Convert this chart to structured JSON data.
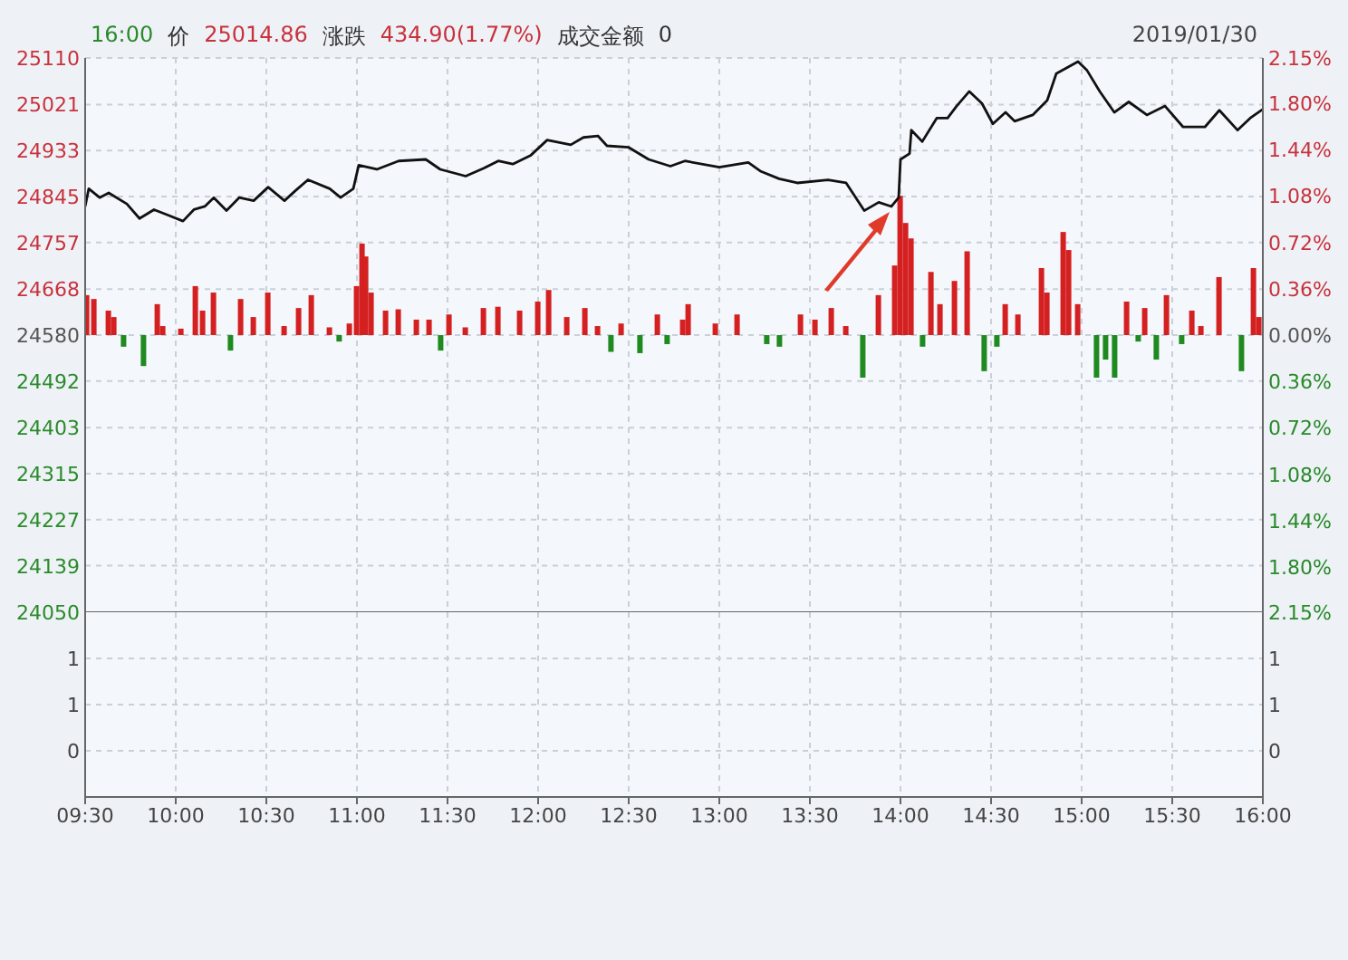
{
  "chart_data": [
    {
      "type": "line",
      "annotations": [
        "16:00",
        "价",
        "25014.86",
        "涨跌",
        "434.90(1.77%)",
        "成交金额",
        "0",
        "2019/01/30"
      ],
      "xlim": [
        9.5,
        16
      ],
      "xticks": [
        9.5,
        10,
        10.5,
        11,
        11.5,
        12,
        12.5,
        13,
        13.5,
        14,
        14.5,
        15,
        15.5,
        16
      ],
      "ylim": [
        24050,
        25110
      ],
      "yticks": [
        24050,
        24139,
        24227,
        24315,
        24403,
        24492,
        24580,
        24668,
        24757,
        24845,
        24933,
        25021,
        25110
      ],
      "y2lim": [
        -2.15,
        2.15
      ],
      "y2ticks": [
        {
          "value": -2.15,
          "label": "2.15%"
        },
        {
          "value": -1.8,
          "label": "1.80%"
        },
        {
          "value": -1.44,
          "label": "1.44%"
        },
        {
          "value": -1.08,
          "label": "1.08%"
        },
        {
          "value": -0.72,
          "label": "0.72%"
        },
        {
          "value": -0.36,
          "label": "0.36%"
        },
        {
          "value": 0,
          "label": "0.00%"
        },
        {
          "value": 0.36,
          "label": "0.36%"
        },
        {
          "value": 0.72,
          "label": "0.72%"
        },
        {
          "value": 1.08,
          "label": "1.08%"
        },
        {
          "value": 1.44,
          "label": "1.44%"
        },
        {
          "value": 1.8,
          "label": "1.80%"
        },
        {
          "value": 2.15,
          "label": "2.15%"
        }
      ],
      "tick_labels": "y",
      "grid": true,
      "marker": "none",
      "line_style": "solid",
      "series": [
        {
          "color": "#111111",
          "x": [
            9.5,
            9.52,
            9.58,
            9.63,
            9.73,
            9.8,
            9.88,
            9.96,
            10.04,
            10.1,
            10.16,
            10.21,
            10.28,
            10.35,
            10.43,
            10.51,
            10.6,
            10.66,
            10.73,
            10.85,
            10.91,
            10.98,
            11.01,
            11.11,
            11.23,
            11.38,
            11.46,
            11.6,
            11.7,
            11.78,
            11.86,
            11.96,
            12.05,
            12.18,
            12.25,
            12.33,
            12.38,
            12.5,
            12.61,
            12.73,
            12.81,
            13.0,
            13.16,
            13.23,
            13.33,
            13.43,
            13.6,
            13.7,
            13.8,
            13.88,
            13.95,
            13.99,
            14.0,
            14.05,
            14.06,
            14.12,
            14.2,
            14.26,
            14.31,
            14.38,
            14.45,
            14.51,
            14.58,
            14.63,
            14.73,
            14.81,
            14.86,
            14.98,
            15.03,
            15.1,
            15.18,
            15.26,
            15.36,
            15.46,
            15.56,
            15.68,
            15.76,
            15.86,
            15.93,
            16.0
          ],
          "values": [
            24826,
            24860,
            24843,
            24852,
            24831,
            24803,
            24820,
            24809,
            24798,
            24820,
            24826,
            24843,
            24818,
            24843,
            24837,
            24863,
            24837,
            24856,
            24877,
            24860,
            24843,
            24860,
            24905,
            24897,
            24913,
            24916,
            24897,
            24884,
            24899,
            24913,
            24907,
            24924,
            24953,
            24944,
            24958,
            24961,
            24942,
            24939,
            24916,
            24903,
            24913,
            24901,
            24910,
            24893,
            24879,
            24871,
            24877,
            24871,
            24818,
            24834,
            24826,
            24843,
            24916,
            24927,
            24972,
            24950,
            24995,
            24995,
            25018,
            25046,
            25023,
            24984,
            25006,
            24989,
            25001,
            25029,
            25080,
            25103,
            25086,
            25046,
            25006,
            25026,
            25001,
            25018,
            24978,
            24978,
            25010,
            24972,
            24995,
            25012
          ]
        },
        {
          "type": "bar",
          "axis": "y2",
          "color": "#d42020",
          "x": [
            9.51,
            9.55,
            9.63,
            9.66,
            9.9,
            9.93,
            10.03,
            10.11,
            10.15,
            10.21,
            10.36,
            10.43,
            10.51,
            10.6,
            10.68,
            10.75,
            10.85,
            10.96,
            11.0,
            11.03,
            11.05,
            11.08,
            11.16,
            11.23,
            11.33,
            11.4,
            11.51,
            11.6,
            11.7,
            11.78,
            11.9,
            12.0,
            12.06,
            12.16,
            12.26,
            12.33,
            12.46,
            12.66,
            12.8,
            12.83,
            12.98,
            13.1,
            13.45,
            13.53,
            13.62,
            13.7,
            13.88,
            13.97,
            14.0,
            14.03,
            14.06,
            14.17,
            14.22,
            14.3,
            14.37,
            14.58,
            14.65,
            14.78,
            14.81,
            14.9,
            14.93,
            14.98,
            15.25,
            15.35,
            15.47,
            15.61,
            15.66,
            15.76,
            15.95,
            15.98
          ],
          "values": [
            0.31,
            0.28,
            0.19,
            0.14,
            0.24,
            0.07,
            0.05,
            0.38,
            0.19,
            0.33,
            0.28,
            0.14,
            0.33,
            0.07,
            0.21,
            0.31,
            0.06,
            0.09,
            0.38,
            0.71,
            0.61,
            0.33,
            0.19,
            0.2,
            0.12,
            0.12,
            0.16,
            0.06,
            0.21,
            0.22,
            0.19,
            0.26,
            0.35,
            0.14,
            0.21,
            0.07,
            0.09,
            0.16,
            0.12,
            0.24,
            0.09,
            0.16,
            0.16,
            0.12,
            0.21,
            0.07,
            0.31,
            0.54,
            1.08,
            0.87,
            0.75,
            0.49,
            0.24,
            0.42,
            0.65,
            0.24,
            0.16,
            0.52,
            0.33,
            0.8,
            0.66,
            0.24,
            0.26,
            0.21,
            0.31,
            0.19,
            0.07,
            0.45,
            0.52,
            0.14
          ]
        },
        {
          "type": "bar",
          "axis": "y2",
          "color": "#1f8a1f",
          "x": [
            9.71,
            9.82,
            10.3,
            10.9,
            11.46,
            12.4,
            12.56,
            12.71,
            13.26,
            13.33,
            13.79,
            14.12,
            14.46,
            14.53,
            15.08,
            15.13,
            15.18,
            15.31,
            15.41,
            15.55,
            15.88
          ],
          "values": [
            -0.09,
            -0.24,
            -0.12,
            -0.05,
            -0.12,
            -0.13,
            -0.14,
            -0.07,
            -0.07,
            -0.09,
            -0.33,
            -0.09,
            -0.28,
            -0.09,
            -0.33,
            -0.19,
            -0.33,
            -0.05,
            -0.19,
            -0.07,
            -0.28
          ]
        }
      ]
    },
    {
      "type": "bar",
      "xlim": [
        9.5,
        16
      ],
      "xticks": [
        {
          "value": 9.5,
          "label": "09:30"
        },
        {
          "value": 10,
          "label": "10:00"
        },
        {
          "value": 10.5,
          "label": "10:30"
        },
        {
          "value": 11,
          "label": "11:00"
        },
        {
          "value": 11.5,
          "label": "11:30"
        },
        {
          "value": 12,
          "label": "12:00"
        },
        {
          "value": 12.5,
          "label": "12:30"
        },
        {
          "value": 13,
          "label": "13:00"
        },
        {
          "value": 13.5,
          "label": "13:30"
        },
        {
          "value": 14,
          "label": "14:00"
        },
        {
          "value": 14.5,
          "label": "14:30"
        },
        {
          "value": 15,
          "label": "15:00"
        },
        {
          "value": 15.5,
          "label": "15:30"
        },
        {
          "value": 16,
          "label": "16:00"
        }
      ],
      "ylim": [
        -0.5,
        1.5
      ],
      "yticks": [
        {
          "value": 0,
          "label": "0"
        },
        {
          "value": 0.5,
          "label": "1"
        },
        {
          "value": 1,
          "label": "1"
        }
      ],
      "y2lim": [
        -0.5,
        1.5
      ],
      "y2ticks": [
        {
          "value": 0,
          "label": "0"
        },
        {
          "value": 0.5,
          "label": "1"
        },
        {
          "value": 1,
          "label": "1"
        }
      ],
      "grid": true
    }
  ]
}
